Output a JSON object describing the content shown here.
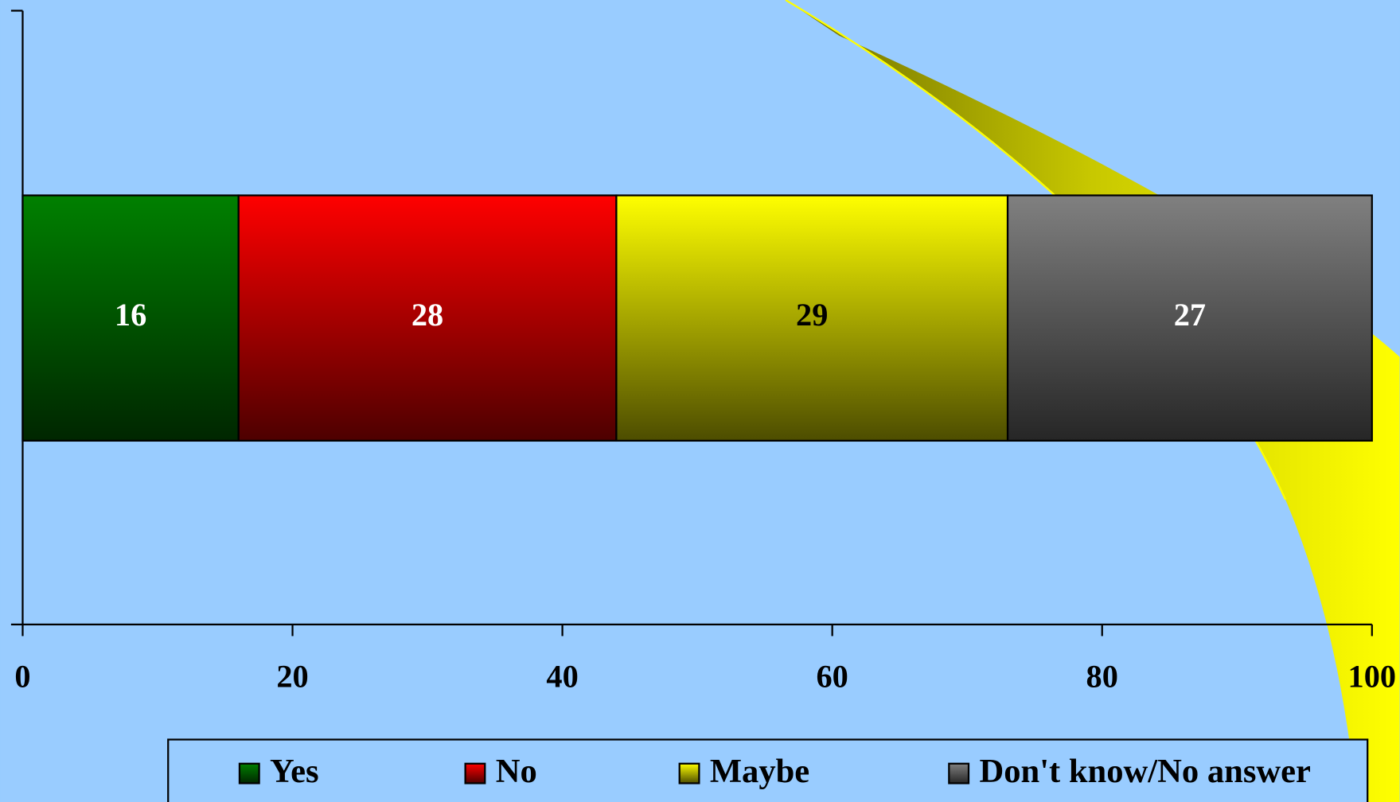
{
  "chart_data": {
    "type": "stacked-bar-horizontal",
    "categories": [
      null
    ],
    "series": [
      {
        "name": "Yes",
        "color": "#008000",
        "values": [
          16
        ]
      },
      {
        "name": "No",
        "color": "#ff0000",
        "values": [
          28
        ]
      },
      {
        "name": "Maybe",
        "color": "#ffff00",
        "values": [
          29
        ]
      },
      {
        "name": "Don't know/No answer",
        "color": "#808080",
        "values": [
          27
        ]
      }
    ],
    "xlim": [
      0,
      100
    ],
    "xticks": [
      0,
      20,
      40,
      60,
      80,
      100
    ],
    "legend": "bottom"
  }
}
